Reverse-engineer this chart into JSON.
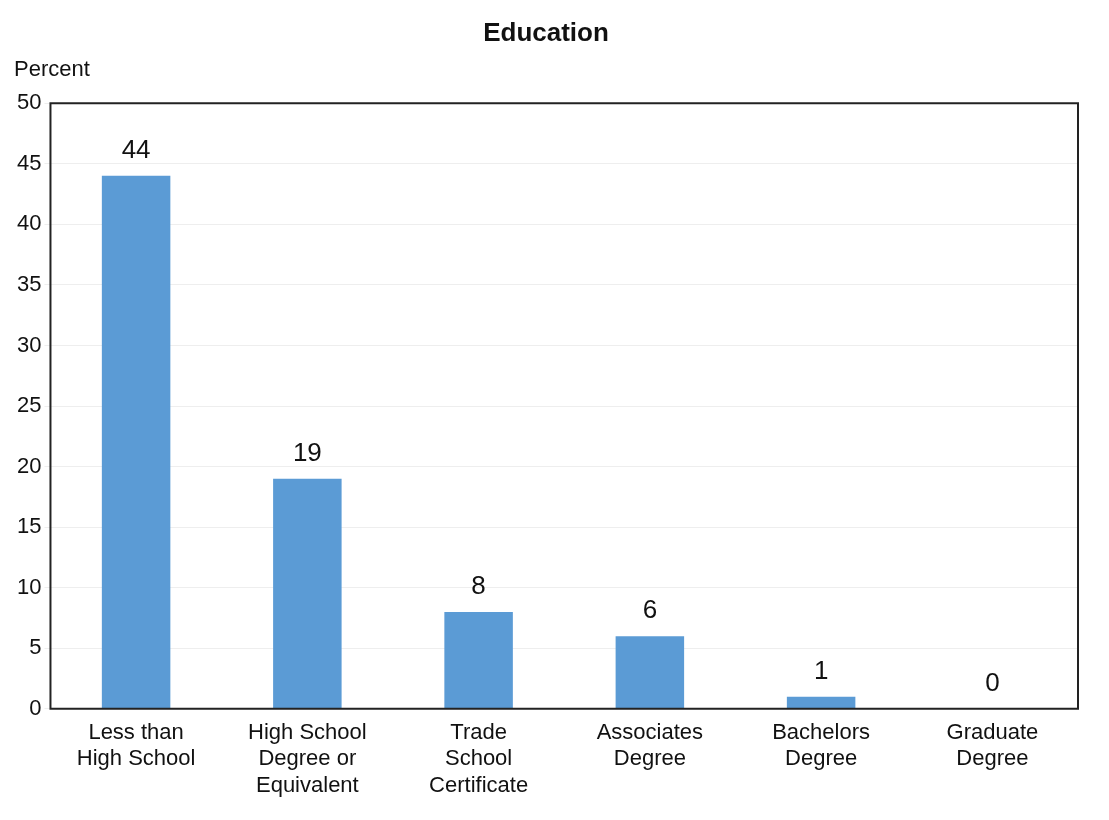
{
  "chart_data": {
    "type": "bar",
    "title": "Education",
    "ylabel": "Percent",
    "categories": [
      "Less than High School",
      "High School Degree or Equivalent",
      "Trade School Certificate",
      "Associates Degree",
      "Bachelors Degree",
      "Graduate Degree"
    ],
    "values": [
      44,
      19,
      8,
      6,
      1,
      0
    ],
    "color": "#5b9bd5",
    "ylim": [
      0,
      50
    ],
    "yticks": [
      0,
      5,
      10,
      15,
      20,
      25,
      30,
      35,
      40,
      45,
      50
    ],
    "grid": "y",
    "data_labels": true,
    "legend": false
  }
}
